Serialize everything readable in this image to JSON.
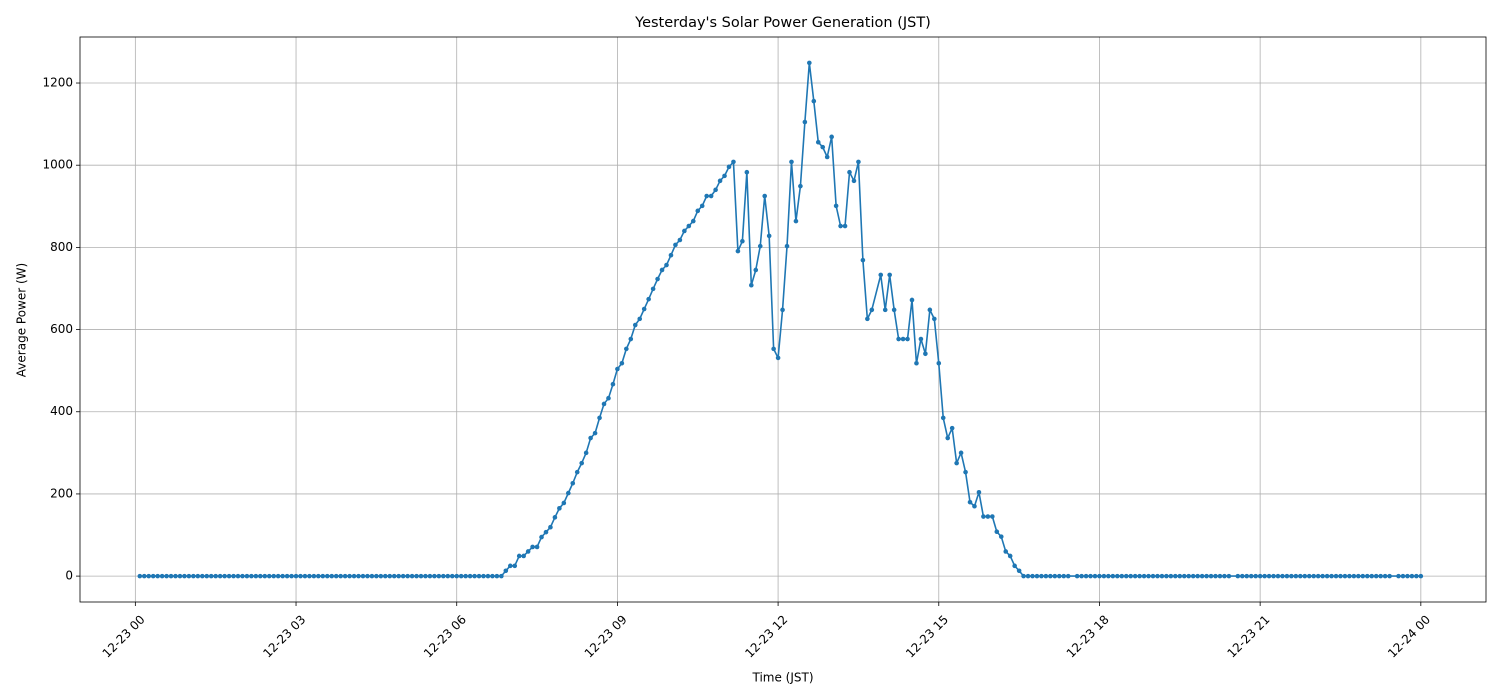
{
  "chart_data": {
    "type": "line",
    "title": "Yesterday's Solar Power Generation (JST)",
    "xlabel": "Time (JST)",
    "ylabel": "Average Power (W)",
    "color": "#1f77b4",
    "grid": true,
    "xlim": [
      -62,
      1513
    ],
    "xticks": [
      {
        "value": 0,
        "label": "12-23 00"
      },
      {
        "value": 180,
        "label": "12-23 03"
      },
      {
        "value": 360,
        "label": "12-23 06"
      },
      {
        "value": 540,
        "label": "12-23 09"
      },
      {
        "value": 720,
        "label": "12-23 12"
      },
      {
        "value": 900,
        "label": "12-23 15"
      },
      {
        "value": 1080,
        "label": "12-23 18"
      },
      {
        "value": 1260,
        "label": "12-23 21"
      },
      {
        "value": 1440,
        "label": "12-24 00"
      }
    ],
    "ylim": [
      -63,
      1312
    ],
    "yticks": [
      0,
      200,
      400,
      600,
      800,
      1000,
      1200
    ],
    "x": [
      5,
      10,
      15,
      20,
      25,
      30,
      35,
      40,
      45,
      50,
      55,
      60,
      65,
      70,
      75,
      80,
      85,
      90,
      95,
      100,
      105,
      110,
      115,
      120,
      125,
      130,
      135,
      140,
      145,
      150,
      155,
      160,
      165,
      170,
      175,
      180,
      185,
      190,
      195,
      200,
      205,
      210,
      215,
      220,
      225,
      230,
      235,
      240,
      245,
      250,
      255,
      260,
      265,
      270,
      275,
      280,
      285,
      290,
      295,
      300,
      305,
      310,
      315,
      320,
      325,
      330,
      335,
      340,
      345,
      350,
      355,
      360,
      365,
      370,
      375,
      380,
      385,
      390,
      395,
      400,
      405,
      410,
      415,
      420,
      425,
      430,
      435,
      440,
      445,
      450,
      455,
      460,
      465,
      470,
      475,
      480,
      485,
      490,
      495,
      500,
      505,
      510,
      515,
      520,
      525,
      530,
      535,
      540,
      545,
      550,
      555,
      560,
      565,
      570,
      575,
      580,
      585,
      590,
      595,
      600,
      605,
      610,
      615,
      620,
      625,
      630,
      635,
      640,
      645,
      650,
      655,
      660,
      665,
      670,
      675,
      680,
      685,
      690,
      695,
      700,
      705,
      710,
      715,
      720,
      725,
      730,
      735,
      740,
      745,
      750,
      755,
      760,
      765,
      770,
      775,
      780,
      785,
      790,
      795,
      800,
      805,
      810,
      815,
      820,
      825,
      835,
      840,
      845,
      850,
      855,
      860,
      865,
      870,
      875,
      880,
      885,
      890,
      895,
      900,
      905,
      910,
      915,
      920,
      925,
      930,
      935,
      940,
      945,
      950,
      955,
      960,
      965,
      970,
      975,
      980,
      985,
      990,
      995,
      1000,
      1005,
      1010,
      1015,
      1020,
      1025,
      1030,
      1035,
      1040,
      1045,
      1055,
      1060,
      1065,
      1070,
      1075,
      1080,
      1085,
      1090,
      1095,
      1100,
      1105,
      1110,
      1115,
      1120,
      1125,
      1130,
      1135,
      1140,
      1145,
      1150,
      1155,
      1160,
      1165,
      1170,
      1175,
      1180,
      1185,
      1190,
      1195,
      1200,
      1205,
      1210,
      1215,
      1220,
      1225,
      1235,
      1240,
      1245,
      1250,
      1255,
      1260,
      1265,
      1270,
      1275,
      1280,
      1285,
      1290,
      1295,
      1300,
      1305,
      1310,
      1315,
      1320,
      1325,
      1330,
      1335,
      1340,
      1345,
      1350,
      1355,
      1360,
      1365,
      1370,
      1375,
      1380,
      1385,
      1390,
      1395,
      1400,
      1405,
      1415,
      1420,
      1425,
      1430,
      1435,
      1440
    ],
    "values": [
      0,
      0,
      0,
      0,
      0,
      0,
      0,
      0,
      0,
      0,
      0,
      0,
      0,
      0,
      0,
      0,
      0,
      0,
      0,
      0,
      0,
      0,
      0,
      0,
      0,
      0,
      0,
      0,
      0,
      0,
      0,
      0,
      0,
      0,
      0,
      0,
      0,
      0,
      0,
      0,
      0,
      0,
      0,
      0,
      0,
      0,
      0,
      0,
      0,
      0,
      0,
      0,
      0,
      0,
      0,
      0,
      0,
      0,
      0,
      0,
      0,
      0,
      0,
      0,
      0,
      0,
      0,
      0,
      0,
      0,
      0,
      0,
      0,
      0,
      0,
      0,
      0,
      0,
      0,
      0,
      0,
      0,
      13,
      25,
      25,
      49,
      49,
      60,
      71,
      71,
      95,
      107,
      119,
      143,
      165,
      178,
      202,
      226,
      253,
      275,
      300,
      336,
      348,
      385,
      419,
      433,
      467,
      504,
      518,
      553,
      577,
      611,
      626,
      650,
      674,
      699,
      723,
      745,
      757,
      781,
      806,
      818,
      840,
      852,
      864,
      889,
      901,
      925,
      925,
      940,
      962,
      974,
      996,
      1008,
      791,
      815,
      983,
      708,
      745,
      803,
      925,
      828,
      553,
      531,
      648,
      803,
      1008,
      864,
      949,
      1105,
      1249,
      1156,
      1056,
      1044,
      1020,
      1069,
      901,
      852,
      852,
      983,
      962,
      1008,
      769,
      626,
      648,
      733,
      648,
      733,
      648,
      577,
      577,
      577,
      672,
      518,
      577,
      541,
      648,
      626,
      518,
      385,
      336,
      360,
      275,
      300,
      253,
      180,
      170,
      204,
      145,
      145,
      145,
      108,
      96,
      60,
      49,
      25,
      13,
      0,
      0,
      0,
      0,
      0,
      0,
      0,
      0,
      0,
      0,
      0,
      0,
      0,
      0,
      0,
      0,
      0,
      0,
      0,
      0,
      0,
      0,
      0,
      0,
      0,
      0,
      0,
      0,
      0,
      0,
      0,
      0,
      0,
      0,
      0,
      0,
      0,
      0,
      0,
      0,
      0,
      0,
      0,
      0,
      0,
      0,
      0,
      0,
      0,
      0,
      0,
      0,
      0,
      0,
      0,
      0,
      0,
      0,
      0,
      0,
      0,
      0,
      0,
      0,
      0,
      0,
      0,
      0,
      0,
      0,
      0,
      0,
      0,
      0,
      0,
      0,
      0,
      0,
      0,
      0,
      0,
      0,
      0,
      0,
      0,
      0,
      0
    ]
  }
}
